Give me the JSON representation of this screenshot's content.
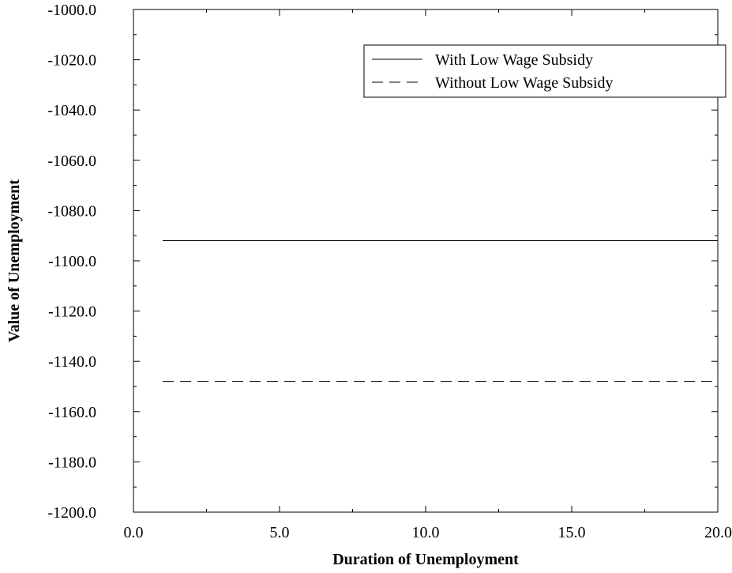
{
  "chart_data": {
    "type": "line",
    "title": "",
    "xlabel": "Duration of Unemployment",
    "ylabel": "Value of Unemployment",
    "xlim": [
      0.0,
      20.0
    ],
    "ylim": [
      -1200.0,
      -1000.0
    ],
    "x_ticks": [
      "0.0",
      "5.0",
      "10.0",
      "15.0",
      "20.0"
    ],
    "y_ticks": [
      "-1000.0",
      "-1020.0",
      "-1040.0",
      "-1060.0",
      "-1080.0",
      "-1100.0",
      "-1120.0",
      "-1140.0",
      "-1160.0",
      "-1180.0",
      "-1200.0"
    ],
    "x_tick_values": [
      0,
      5,
      10,
      15,
      20
    ],
    "y_tick_values": [
      -1000,
      -1020,
      -1040,
      -1060,
      -1080,
      -1100,
      -1120,
      -1140,
      -1160,
      -1180,
      -1200
    ],
    "legend_position": "top-right",
    "grid": false,
    "series": [
      {
        "name": "With Low Wage Subsidy",
        "style": "solid",
        "x": [
          1,
          20
        ],
        "y": [
          -1092,
          -1092
        ]
      },
      {
        "name": "Without Low Wage Subsidy",
        "style": "dashed",
        "x": [
          1,
          20
        ],
        "y": [
          -1148,
          -1148
        ]
      }
    ]
  },
  "colors": {
    "line": "#000000",
    "axis": "#000000"
  }
}
